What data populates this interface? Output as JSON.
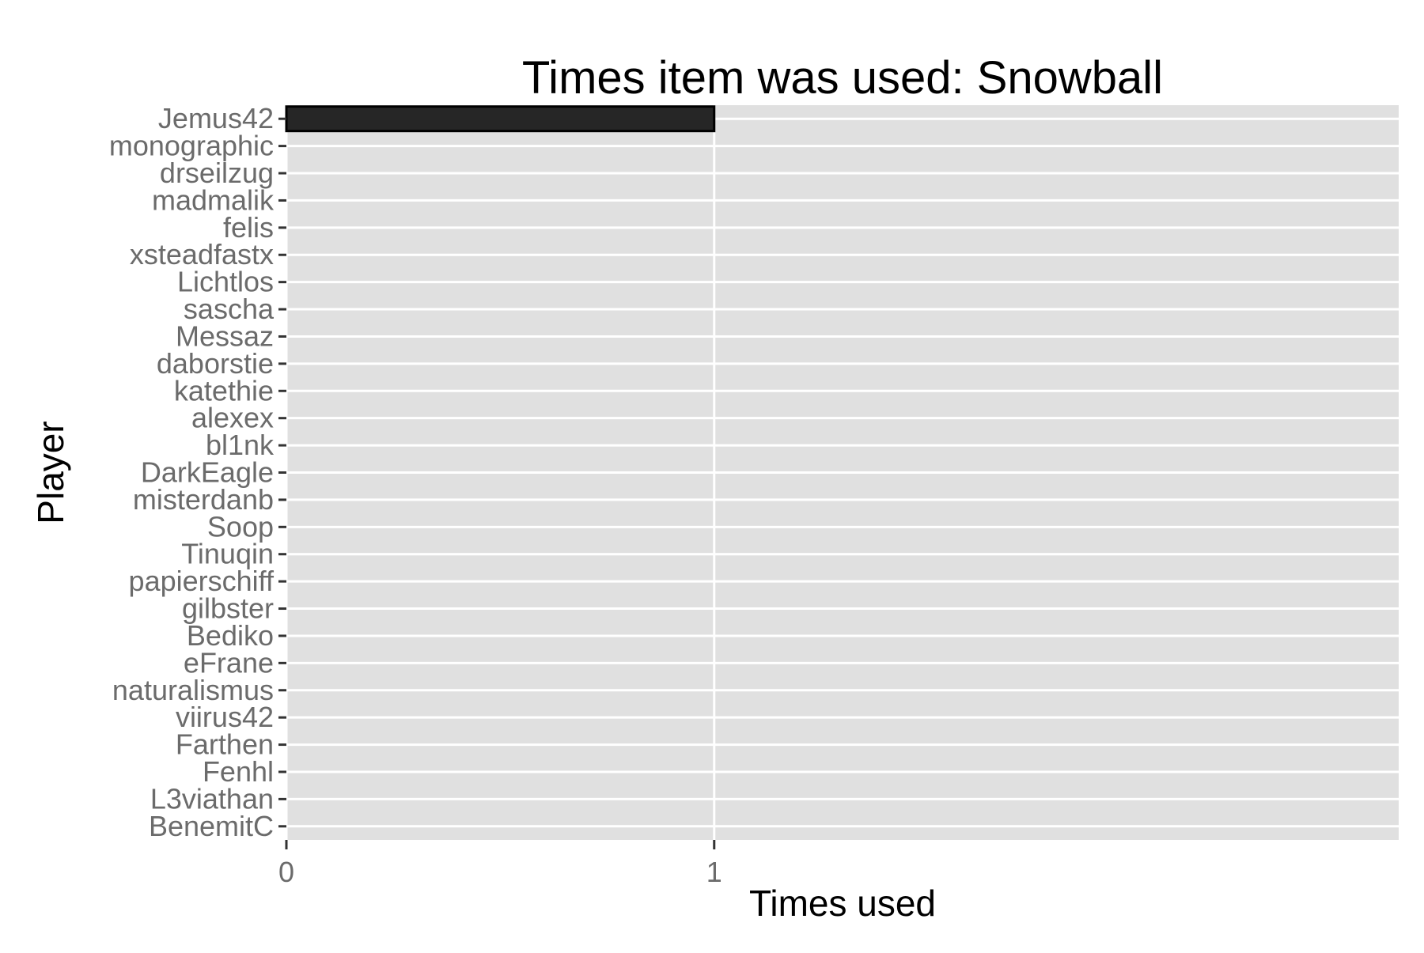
{
  "chart_data": {
    "type": "bar",
    "orientation": "horizontal",
    "title": "Times item was used: Snowball",
    "xlabel": "Times used",
    "ylabel": "Player",
    "categories": [
      "Jemus42",
      "monographic",
      "drseilzug",
      "madmalik",
      "felis",
      "xsteadfastx",
      "Lichtlos",
      "sascha",
      "Messaz",
      "daborstie",
      "katethie",
      "alexex",
      "bl1nk",
      "DarkEagle",
      "misterdanb",
      "Soop",
      "Tinuqin",
      "papierschiff",
      "gilbster",
      "Bediko",
      "eFrane",
      "naturalismus",
      "viirus42",
      "Farthen",
      "Fenhl",
      "L3viathan",
      "BenemitC"
    ],
    "values": [
      1,
      0,
      0,
      0,
      0,
      0,
      0,
      0,
      0,
      0,
      0,
      0,
      0,
      0,
      0,
      0,
      0,
      0,
      0,
      0,
      0,
      0,
      0,
      0,
      0,
      0,
      0
    ],
    "xticks": [
      "0",
      "1"
    ],
    "xlim": [
      0,
      2.6
    ],
    "grid": true,
    "colors": {
      "panel": "#e0e0e0",
      "grid": "#ffffff",
      "bar": "#262626",
      "bar_outline": "#000000",
      "tick": "#333333",
      "tick_label": "#6b6b6b"
    }
  }
}
